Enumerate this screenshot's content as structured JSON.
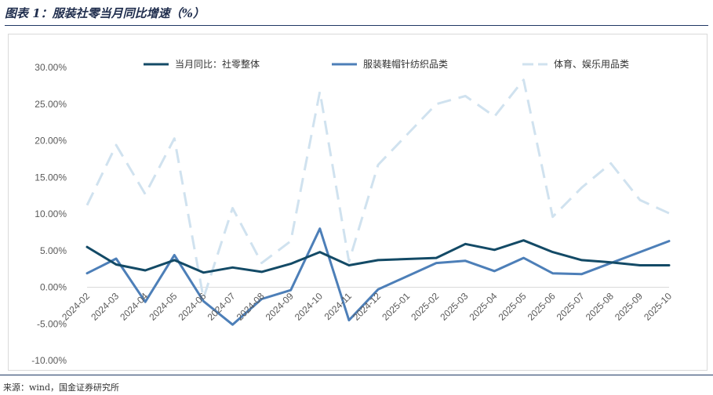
{
  "header": {
    "title": "图表 1：服装社零当月同比增速（%）"
  },
  "footer": {
    "source": "来源：wind，国金证券研究所"
  },
  "colors": {
    "series1": "#134a66",
    "series2": "#4d7fb8",
    "series3": "#d0e2ef",
    "axis_text": "#595959"
  },
  "chart_data": {
    "type": "line",
    "title": "",
    "xlabel": "",
    "ylabel": "",
    "ylim": [
      -10,
      30
    ],
    "yticks": [
      -10,
      -5,
      0,
      5,
      10,
      15,
      20,
      25,
      30
    ],
    "ytick_labels": [
      "-10.00%",
      "-5.00%",
      "0.00%",
      "5.00%",
      "10.00%",
      "15.00%",
      "20.00%",
      "25.00%",
      "30.00%"
    ],
    "grid": false,
    "legend_position": "top",
    "categories": [
      "2024-02",
      "2024-03",
      "2024-04",
      "2024-05",
      "2024-06",
      "2024-07",
      "2024-08",
      "2024-09",
      "2024-10",
      "2024-11",
      "2024-12",
      "2025-01",
      "2025-02",
      "2025-03",
      "2025-04",
      "2025-05",
      "2025-06",
      "2025-07",
      "2025-08",
      "2025-09",
      "2025-10"
    ],
    "series": [
      {
        "name": "当月同比：社零整体",
        "style": "solid",
        "values": [
          5.5,
          3.1,
          2.3,
          3.7,
          2.0,
          2.7,
          2.1,
          3.2,
          4.8,
          3.0,
          3.7,
          null,
          4.0,
          5.9,
          5.1,
          6.4,
          4.8,
          3.7,
          3.4,
          3.0,
          3.0
        ]
      },
      {
        "name": "服装鞋帽针纺织品类",
        "style": "solid",
        "values": [
          1.9,
          3.9,
          -2.0,
          4.4,
          -1.9,
          -5.1,
          -1.6,
          -0.4,
          8.0,
          -4.5,
          -0.3,
          null,
          3.3,
          3.6,
          2.2,
          4.0,
          1.9,
          1.8,
          null,
          null,
          6.3
        ]
      },
      {
        "name": "体育、娱乐用品类",
        "style": "dashed",
        "values": [
          11.2,
          19.4,
          12.7,
          20.3,
          -1.5,
          10.8,
          3.3,
          6.3,
          26.7,
          3.5,
          16.7,
          null,
          25.0,
          26.1,
          23.3,
          28.3,
          9.6,
          13.6,
          16.9,
          11.9,
          10.1
        ]
      }
    ]
  }
}
